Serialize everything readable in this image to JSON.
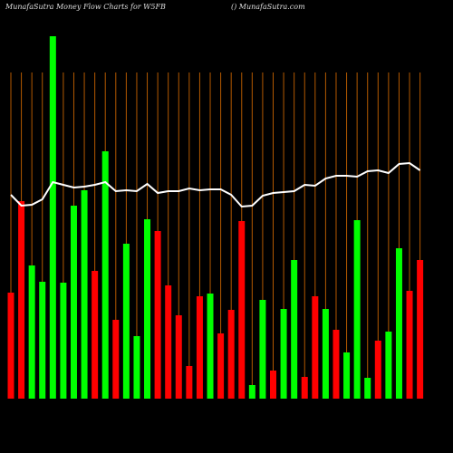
{
  "chart_data": {
    "type": "bar",
    "title": "MunafaSutra  Money Flow  Charts for W5FB",
    "subtitle": "() MunafaSutra.com",
    "categories": [
      null,
      null,
      null,
      null,
      null,
      null,
      null,
      null,
      null,
      null,
      null,
      null,
      null,
      null,
      null,
      null,
      null,
      null,
      null,
      null,
      null,
      null,
      null,
      null,
      null,
      null,
      null,
      null,
      null,
      null,
      null,
      null,
      null,
      null,
      null,
      null,
      null,
      null,
      null,
      null
    ],
    "values": [
      117,
      218,
      147,
      129,
      400,
      128,
      213,
      230,
      141,
      273,
      87,
      171,
      69,
      198,
      185,
      125,
      92,
      36,
      113,
      116,
      72,
      98,
      196,
      15,
      109,
      31,
      99,
      153,
      24,
      113,
      99,
      76,
      51,
      197,
      23,
      64,
      74,
      166,
      119,
      153
    ],
    "colors": [
      "#ff0000",
      "#ff0000",
      "#00ff00",
      "#00ff00",
      "#00ff00",
      "#00ff00",
      "#00ff00",
      "#00ff00",
      "#ff0000",
      "#00ff00",
      "#ff0000",
      "#00ff00",
      "#00ff00",
      "#00ff00",
      "#ff0000",
      "#ff0000",
      "#ff0000",
      "#ff0000",
      "#ff0000",
      "#00ff00",
      "#ff0000",
      "#ff0000",
      "#ff0000",
      "#00ff00",
      "#00ff00",
      "#ff0000",
      "#00ff00",
      "#00ff00",
      "#ff0000",
      "#ff0000",
      "#00ff00",
      "#ff0000",
      "#00ff00",
      "#00ff00",
      "#00ff00",
      "#ff0000",
      "#00ff00",
      "#00ff00",
      "#ff0000",
      "#ff0000"
    ],
    "line": {
      "color": "#ffffff",
      "values": [
        225,
        213,
        214,
        220,
        239,
        236,
        233,
        234,
        236,
        239,
        229,
        230,
        229,
        237,
        227,
        229,
        229,
        232,
        230,
        231,
        231,
        225,
        212,
        213,
        224,
        227,
        228,
        229,
        236,
        235,
        243,
        246,
        246,
        245,
        251,
        252,
        249,
        259,
        260,
        252
      ]
    },
    "ylim": [
      0,
      440
    ],
    "grid_color": "#b35900"
  }
}
